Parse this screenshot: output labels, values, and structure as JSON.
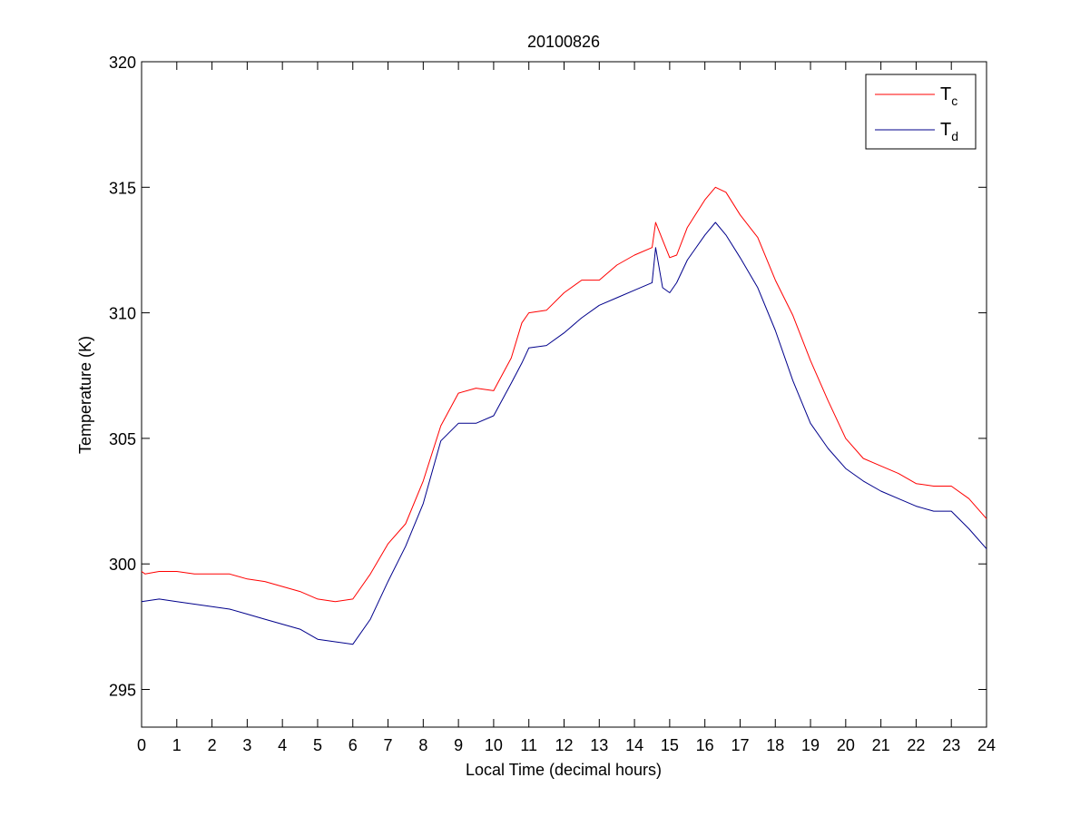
{
  "chart_data": {
    "type": "line",
    "title": "20100826",
    "xlabel": "Local Time (decimal hours)",
    "ylabel": "Temperature (K)",
    "xlim": [
      0,
      24
    ],
    "ylim": [
      293.5,
      320
    ],
    "xticks": [
      0,
      1,
      2,
      3,
      4,
      5,
      6,
      7,
      8,
      9,
      10,
      11,
      12,
      13,
      14,
      15,
      16,
      17,
      18,
      19,
      20,
      21,
      22,
      23,
      24
    ],
    "yticks": [
      295,
      300,
      305,
      310,
      315,
      320
    ],
    "grid": false,
    "legend_position": "top-right",
    "series": [
      {
        "name": "T_c",
        "legend_main": "T",
        "legend_sub": "c",
        "color": "#ff0000",
        "x": [
          0,
          0.1,
          0.5,
          1,
          1.5,
          2,
          2.5,
          3,
          3.5,
          4,
          4.5,
          5,
          5.5,
          6,
          6.5,
          7,
          7.5,
          8,
          8.5,
          9,
          9.5,
          10,
          10.5,
          10.8,
          11,
          11.5,
          12,
          12.5,
          13,
          13.5,
          14,
          14.5,
          14.6,
          14.8,
          15,
          15.2,
          15.5,
          16,
          16.3,
          16.6,
          17,
          17.5,
          18,
          18.5,
          19,
          19.5,
          20,
          20.5,
          21,
          21.5,
          22,
          22.5,
          23,
          23.5,
          24
        ],
        "y": [
          299.7,
          299.6,
          299.7,
          299.7,
          299.6,
          299.6,
          299.6,
          299.4,
          299.3,
          299.1,
          298.9,
          298.6,
          298.5,
          298.6,
          299.6,
          300.8,
          301.6,
          303.3,
          305.5,
          306.8,
          307.0,
          306.9,
          308.2,
          309.6,
          310.0,
          310.1,
          310.8,
          311.3,
          311.3,
          311.9,
          312.3,
          312.6,
          313.6,
          312.9,
          312.2,
          312.3,
          313.4,
          314.5,
          315.0,
          314.8,
          313.9,
          313.0,
          311.3,
          309.9,
          308.1,
          306.5,
          305.0,
          304.2,
          303.9,
          303.6,
          303.2,
          303.1,
          303.1,
          302.6,
          301.8
        ]
      },
      {
        "name": "T_d",
        "legend_main": "T",
        "legend_sub": "d",
        "color": "#00008b",
        "x": [
          0,
          0.5,
          1,
          1.5,
          2,
          2.5,
          3,
          3.5,
          4,
          4.5,
          5,
          5.5,
          6,
          6.5,
          7,
          7.5,
          8,
          8.5,
          9,
          9.5,
          10,
          10.5,
          10.8,
          11,
          11.5,
          12,
          12.5,
          13,
          13.5,
          14,
          14.5,
          14.6,
          14.8,
          15,
          15.2,
          15.5,
          16,
          16.3,
          16.6,
          17,
          17.5,
          18,
          18.5,
          19,
          19.5,
          20,
          20.5,
          21,
          21.5,
          22,
          22.5,
          23,
          23.5,
          24
        ],
        "y": [
          298.5,
          298.6,
          298.5,
          298.4,
          298.3,
          298.2,
          298.0,
          297.8,
          297.6,
          297.4,
          297.0,
          296.9,
          296.8,
          297.8,
          299.3,
          300.7,
          302.4,
          304.9,
          305.6,
          305.6,
          305.9,
          307.2,
          308.0,
          308.6,
          308.7,
          309.2,
          309.8,
          310.3,
          310.6,
          310.9,
          311.2,
          312.6,
          311.0,
          310.8,
          311.2,
          312.1,
          313.1,
          313.6,
          313.1,
          312.2,
          311.0,
          309.3,
          307.3,
          305.6,
          304.6,
          303.8,
          303.3,
          302.9,
          302.6,
          302.3,
          302.1,
          302.1,
          301.4,
          300.6
        ]
      }
    ]
  }
}
